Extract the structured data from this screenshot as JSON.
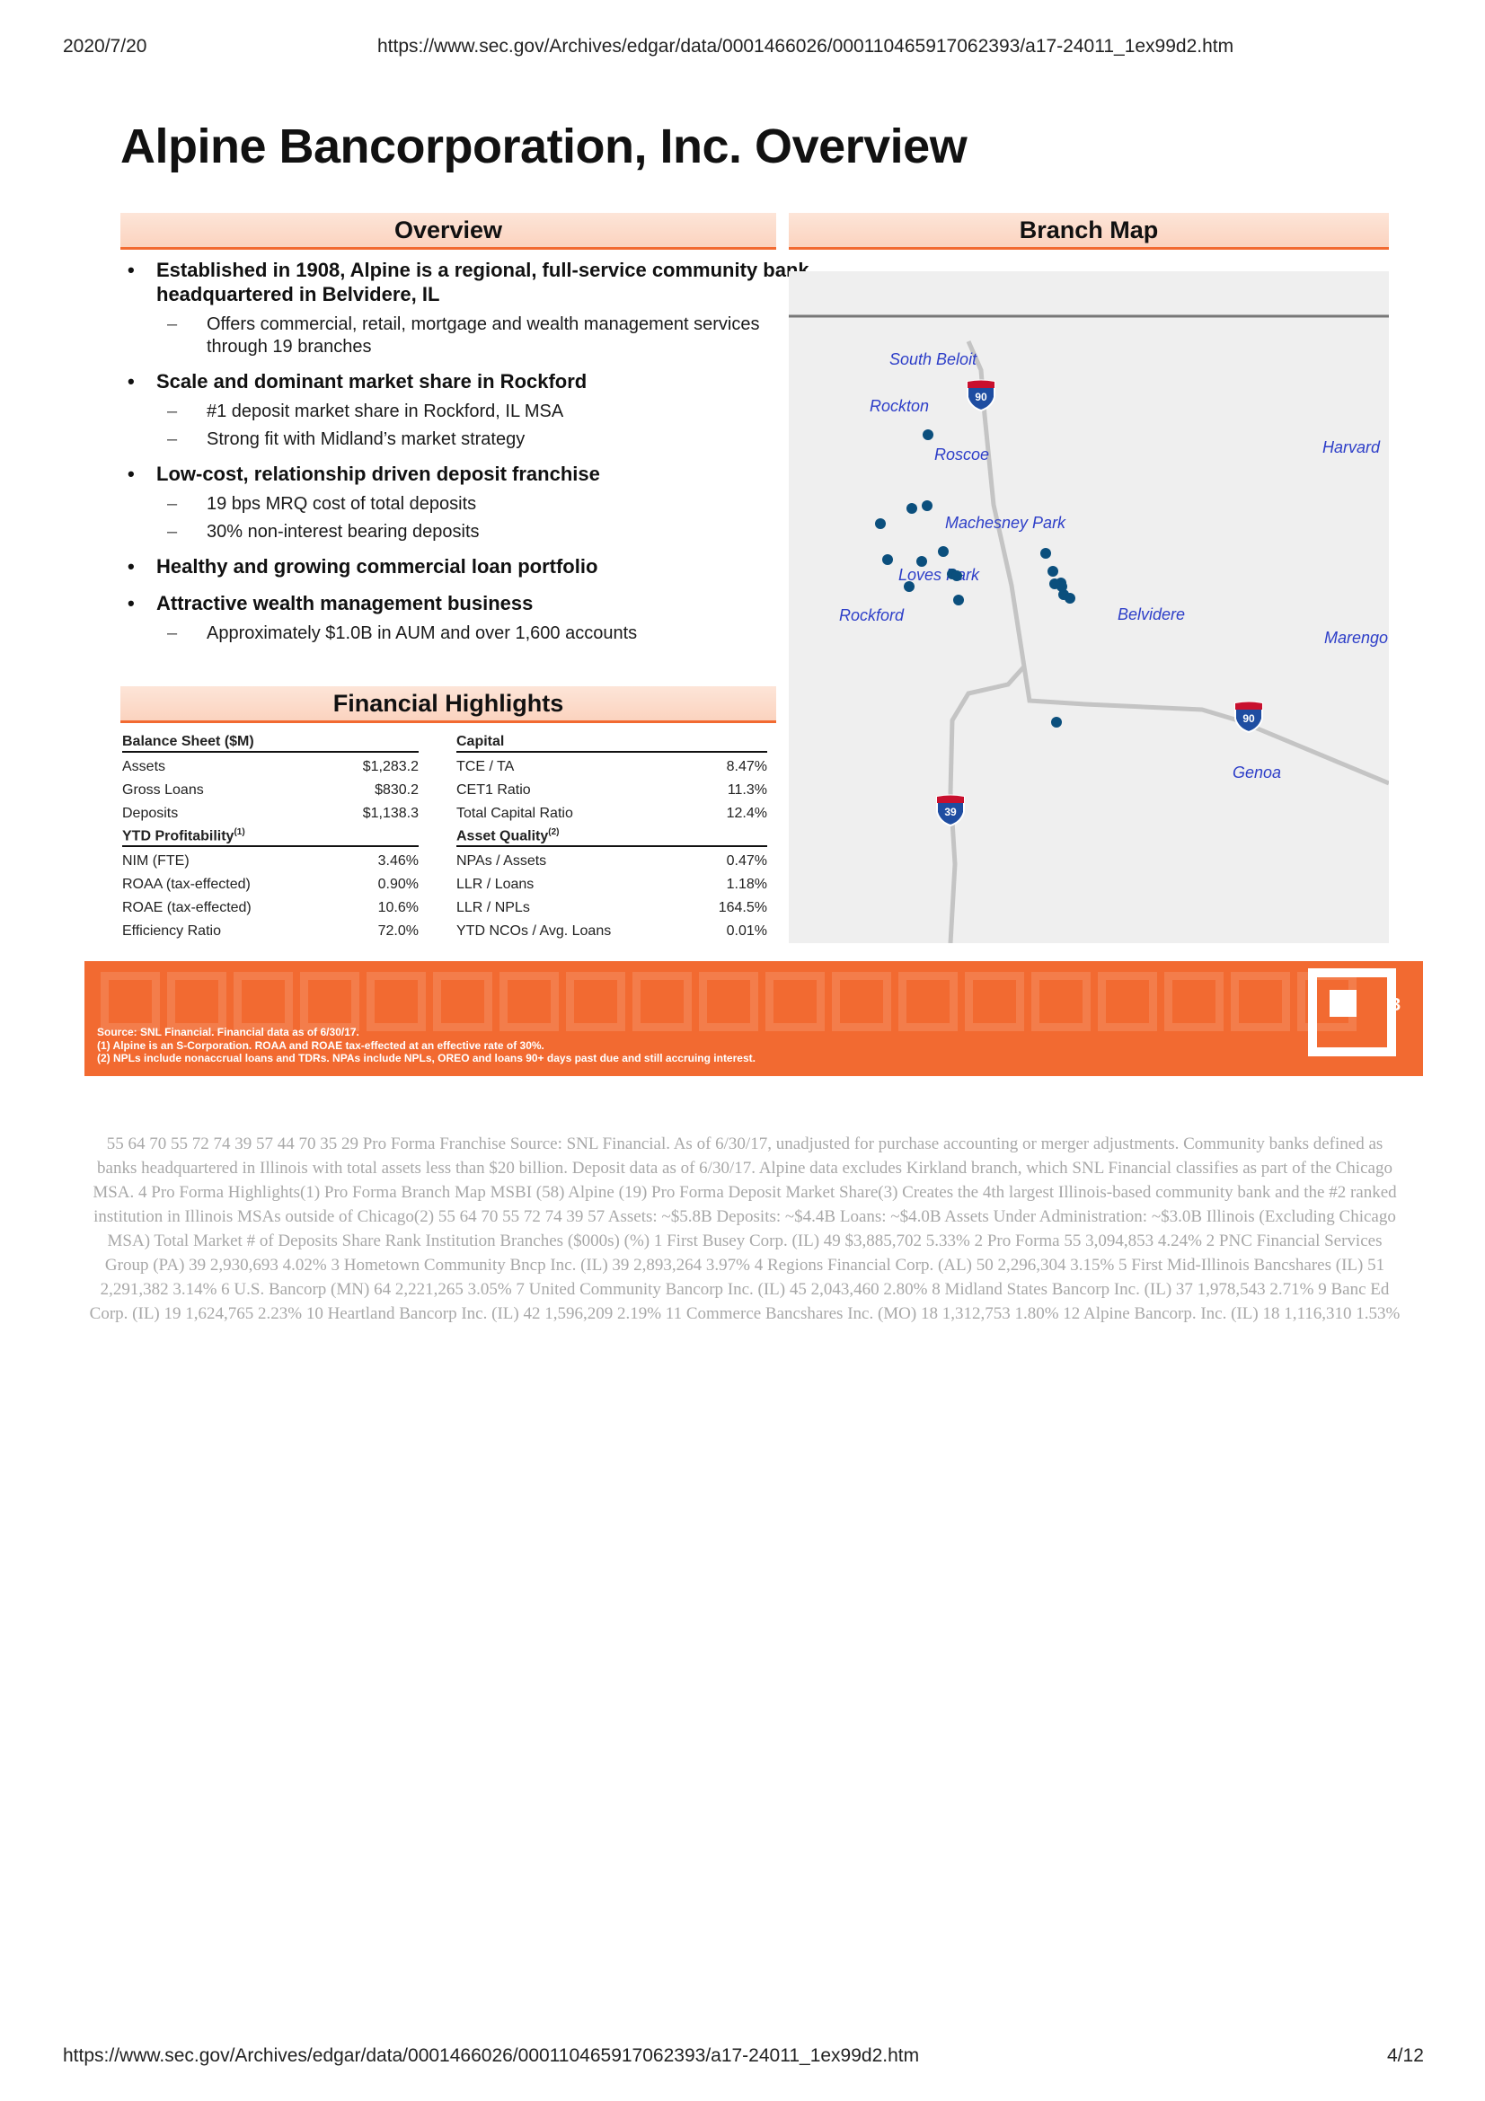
{
  "print_header": {
    "date": "2020/7/20",
    "url": "https://www.sec.gov/Archives/edgar/data/0001466026/000110465917062393/a17-24011_1ex99d2.htm"
  },
  "slide": {
    "title": "Alpine Bancorporation, Inc. Overview",
    "overview": {
      "heading": "Overview",
      "bullets": [
        {
          "text": "Established in 1908, Alpine is a regional, full-service community bank headquartered in Belvidere, IL",
          "subs": [
            "Offers commercial, retail, mortgage and wealth management services through 19 branches"
          ]
        },
        {
          "text": "Scale and dominant market share in Rockford",
          "subs": [
            "#1 deposit market share in Rockford, IL MSA",
            "Strong fit with Midland’s market strategy"
          ]
        },
        {
          "text": "Low-cost, relationship driven deposit franchise",
          "subs": [
            "19 bps MRQ cost of total deposits",
            "30% non-interest bearing deposits"
          ]
        },
        {
          "text": "Healthy and growing commercial loan portfolio",
          "subs": []
        },
        {
          "text": "Attractive wealth management business",
          "subs": [
            "Approximately $1.0B in AUM and over 1,600 accounts"
          ]
        }
      ]
    },
    "financial": {
      "heading": "Financial Highlights",
      "left": [
        {
          "header": "Balance Sheet ($M)",
          "sup": "",
          "rows": [
            [
              "Assets",
              "$1,283.2"
            ],
            [
              "Gross Loans",
              "$830.2"
            ],
            [
              "Deposits",
              "$1,138.3"
            ]
          ]
        },
        {
          "header": "YTD Profitability",
          "sup": "(1)",
          "rows": [
            [
              "NIM (FTE)",
              "3.46%"
            ],
            [
              "ROAA (tax-effected)",
              "0.90%"
            ],
            [
              "ROAE (tax-effected)",
              "10.6%"
            ],
            [
              "Efficiency Ratio",
              "72.0%"
            ]
          ]
        }
      ],
      "right": [
        {
          "header": "Capital",
          "sup": "",
          "rows": [
            [
              "TCE / TA",
              "8.47%"
            ],
            [
              "CET1 Ratio",
              "11.3%"
            ],
            [
              "Total Capital Ratio",
              "12.4%"
            ]
          ]
        },
        {
          "header": "Asset Quality",
          "sup": "(2)",
          "rows": [
            [
              "NPAs / Assets",
              "0.47%"
            ],
            [
              "LLR / Loans",
              "1.18%"
            ],
            [
              "LLR / NPLs",
              "164.5%"
            ],
            [
              "YTD NCOs / Avg. Loans",
              "0.01%"
            ]
          ]
        }
      ]
    },
    "branch_map": {
      "heading": "Branch Map",
      "cities": [
        "South Beloit",
        "Rockton",
        "Roscoe",
        "Harvard",
        "Machesney Park",
        "Loves Park",
        "Rockford",
        "Belvidere",
        "Marengo",
        "Genoa"
      ],
      "highways": [
        "90",
        "90",
        "39"
      ],
      "branch_count": 19
    },
    "footer": {
      "page_number": "3",
      "notes": [
        "Source: SNL Financial. Financial data as of 6/30/17.",
        "(1)   Alpine is an S-Corporation. ROAA and ROAE tax-effected at an effective rate of 30%.",
        "(2)   NPLs include nonaccrual loans and TDRs. NPAs include NPLs, OREO and loans 90+ days past due and still accruing interest."
      ]
    }
  },
  "body_text": "55 64 70 55 72 74 39 57 44 70 35 29 Pro Forma Franchise Source: SNL Financial. As of 6/30/17, unadjusted for purchase accounting or merger adjustments. Community banks defined as banks headquartered in Illinois with total assets less than $20 billion. Deposit data as of 6/30/17. Alpine data excludes Kirkland branch, which SNL Financial classifies as part of the Chicago MSA. 4 Pro Forma Highlights(1) Pro Forma Branch Map MSBI (58) Alpine (19) Pro Forma Deposit Market Share(3) Creates the 4th largest Illinois-based community bank and the #2 ranked institution in Illinois MSAs outside of Chicago(2) 55 64 70 55 72 74 39 57 Assets: ~$5.8B Deposits: ~$4.4B Loans: ~$4.0B Assets Under Administration: ~$3.0B Illinois (Excluding Chicago MSA) Total Market # of Deposits Share Rank Institution Branches ($000s) (%) 1 First Busey Corp. (IL) 49 $3,885,702 5.33% 2 Pro Forma 55 3,094,853 4.24% 2 PNC Financial Services Group (PA) 39 2,930,693 4.02% 3 Hometown Community Bncp Inc. (IL) 39 2,893,264 3.97% 4 Regions Financial Corp. (AL) 50 2,296,304 3.15% 5 First Mid-Illinois Bancshares (IL) 51 2,291,382 3.14% 6 U.S. Bancorp (MN) 64 2,221,265 3.05% 7 United Community Bancorp Inc. (IL) 45 2,043,460 2.80% 8 Midland States Bancorp Inc. (IL) 37 1,978,543 2.71% 9 Banc Ed Corp. (IL) 19 1,624,765 2.23% 10 Heartland Bancorp Inc. (IL) 42 1,596,209 2.19% 11 Commerce Bancshares Inc. (MO) 18 1,312,753 1.80% 12 Alpine Bancorp. Inc. (IL) 18 1,116,310 1.53%",
  "print_footer": {
    "url": "https://www.sec.gov/Archives/edgar/data/0001466026/000110465917062393/a17-24011_1ex99d2.htm",
    "page": "4/12"
  },
  "colors": {
    "accent": "#f26a31",
    "header_fill": "#fbd9c6",
    "map_bg": "#efefef",
    "city_label": "#2d3ec8",
    "branch_dot": "#0b4f7d",
    "body_text": "#a8a8a8"
  }
}
